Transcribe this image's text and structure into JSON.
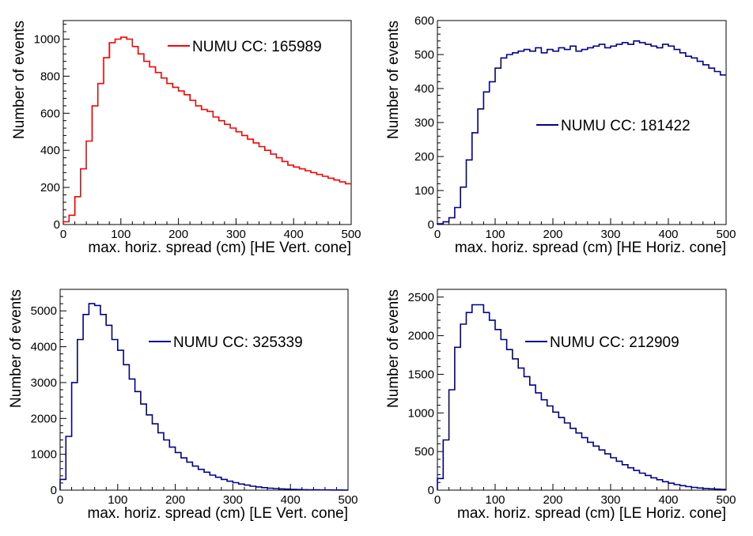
{
  "chart_data": [
    {
      "type": "histogram",
      "position": "top-left",
      "line_color": "#ff0000",
      "xlabel": "max. horiz. spread (cm) [HE Vert. cone]",
      "ylabel": "Number of events",
      "xlim": [
        0,
        500
      ],
      "ylim": [
        0,
        1100
      ],
      "xticks": [
        "0",
        "100",
        "200",
        "300",
        "400",
        "500"
      ],
      "yticks": [
        "0",
        "200",
        "400",
        "600",
        "800",
        "1000"
      ],
      "xtick_values": [
        0,
        100,
        200,
        300,
        400,
        500
      ],
      "ytick_values": [
        0,
        200,
        400,
        600,
        800,
        1000
      ],
      "legend": {
        "label": "NUMU CC: 165989",
        "placement": "top-right"
      },
      "bin_width": 10,
      "x": [
        0,
        10,
        20,
        30,
        40,
        50,
        60,
        70,
        80,
        90,
        100,
        110,
        120,
        130,
        140,
        150,
        160,
        170,
        180,
        190,
        200,
        210,
        220,
        230,
        240,
        250,
        260,
        270,
        280,
        290,
        300,
        310,
        320,
        330,
        340,
        350,
        360,
        370,
        380,
        390,
        400,
        410,
        420,
        430,
        440,
        450,
        460,
        470,
        480,
        490
      ],
      "values": [
        15,
        50,
        150,
        300,
        450,
        640,
        760,
        900,
        980,
        1000,
        1010,
        1000,
        960,
        920,
        880,
        850,
        820,
        790,
        760,
        740,
        720,
        700,
        670,
        640,
        620,
        610,
        580,
        560,
        540,
        520,
        500,
        480,
        460,
        440,
        420,
        400,
        380,
        360,
        340,
        320,
        310,
        300,
        290,
        280,
        270,
        260,
        250,
        240,
        230,
        220
      ]
    },
    {
      "type": "histogram",
      "position": "top-right",
      "line_color": "#00008b",
      "xlabel": "max. horiz. spread (cm) [HE Horiz. cone]",
      "ylabel": "Number of events",
      "xlim": [
        0,
        500
      ],
      "ylim": [
        0,
        600
      ],
      "xticks": [
        "0",
        "100",
        "200",
        "300",
        "400",
        "500"
      ],
      "yticks": [
        "0",
        "100",
        "200",
        "300",
        "400",
        "500",
        "600"
      ],
      "xtick_values": [
        0,
        100,
        200,
        300,
        400,
        500
      ],
      "ytick_values": [
        0,
        100,
        200,
        300,
        400,
        500,
        600
      ],
      "legend": {
        "label": "NUMU CC: 181422",
        "placement": "middle-right"
      },
      "bin_width": 10,
      "x": [
        0,
        10,
        20,
        30,
        40,
        50,
        60,
        70,
        80,
        90,
        100,
        110,
        120,
        130,
        140,
        150,
        160,
        170,
        180,
        190,
        200,
        210,
        220,
        230,
        240,
        250,
        260,
        270,
        280,
        290,
        300,
        310,
        320,
        330,
        340,
        350,
        360,
        370,
        380,
        390,
        400,
        410,
        420,
        430,
        440,
        450,
        460,
        470,
        480,
        490
      ],
      "values": [
        2,
        8,
        20,
        50,
        110,
        190,
        270,
        340,
        390,
        420,
        460,
        490,
        500,
        505,
        510,
        515,
        510,
        520,
        505,
        515,
        510,
        520,
        515,
        525,
        510,
        515,
        520,
        525,
        530,
        520,
        525,
        530,
        535,
        530,
        540,
        535,
        530,
        525,
        520,
        530,
        525,
        515,
        505,
        495,
        490,
        480,
        470,
        460,
        450,
        440
      ]
    },
    {
      "type": "histogram",
      "position": "bottom-left",
      "line_color": "#00008b",
      "xlabel": "max. horiz. spread (cm) [LE Vert. cone]",
      "ylabel": "Number of events",
      "xlim": [
        0,
        500
      ],
      "ylim": [
        0,
        5600
      ],
      "xticks": [
        "0",
        "100",
        "200",
        "300",
        "400",
        "500"
      ],
      "yticks": [
        "0",
        "1000",
        "2000",
        "3000",
        "4000",
        "5000"
      ],
      "xtick_values": [
        0,
        100,
        200,
        300,
        400,
        500
      ],
      "ytick_values": [
        0,
        1000,
        2000,
        3000,
        4000,
        5000
      ],
      "legend": {
        "label": "NUMU CC: 325339",
        "placement": "top-right"
      },
      "bin_width": 10,
      "x": [
        0,
        10,
        20,
        30,
        40,
        50,
        60,
        70,
        80,
        90,
        100,
        110,
        120,
        130,
        140,
        150,
        160,
        170,
        180,
        190,
        200,
        210,
        220,
        230,
        240,
        250,
        260,
        270,
        280,
        290,
        300,
        310,
        320,
        330,
        340,
        350,
        360,
        370,
        380,
        390,
        400,
        410,
        420,
        430,
        440,
        450,
        460,
        470,
        480,
        490
      ],
      "values": [
        300,
        1500,
        3000,
        4200,
        4900,
        5200,
        5150,
        4900,
        4600,
        4200,
        3900,
        3500,
        3100,
        2750,
        2400,
        2100,
        1850,
        1600,
        1400,
        1200,
        1050,
        900,
        780,
        670,
        580,
        500,
        420,
        360,
        300,
        250,
        210,
        170,
        140,
        110,
        90,
        70,
        55,
        45,
        35,
        28,
        22,
        18,
        14,
        11,
        9,
        7,
        6,
        5,
        4,
        3
      ]
    },
    {
      "type": "histogram",
      "position": "bottom-right",
      "line_color": "#00008b",
      "xlabel": "max. horiz. spread (cm) [LE Horiz. cone]",
      "ylabel": "Number of events",
      "xlim": [
        0,
        500
      ],
      "ylim": [
        0,
        2600
      ],
      "xticks": [
        "0",
        "100",
        "200",
        "300",
        "400",
        "500"
      ],
      "yticks": [
        "0",
        "500",
        "1000",
        "1500",
        "2000",
        "2500"
      ],
      "xtick_values": [
        0,
        100,
        200,
        300,
        400,
        500
      ],
      "ytick_values": [
        0,
        500,
        1000,
        1500,
        2000,
        2500
      ],
      "legend": {
        "label": "NUMU CC: 212909",
        "placement": "top-right"
      },
      "bin_width": 10,
      "x": [
        0,
        10,
        20,
        30,
        40,
        50,
        60,
        70,
        80,
        90,
        100,
        110,
        120,
        130,
        140,
        150,
        160,
        170,
        180,
        190,
        200,
        210,
        220,
        230,
        240,
        250,
        260,
        270,
        280,
        290,
        300,
        310,
        320,
        330,
        340,
        350,
        360,
        370,
        380,
        390,
        400,
        410,
        420,
        430,
        440,
        450,
        460,
        470,
        480,
        490
      ],
      "values": [
        150,
        650,
        1300,
        1850,
        2150,
        2300,
        2400,
        2400,
        2300,
        2200,
        2080,
        1950,
        1820,
        1700,
        1580,
        1470,
        1360,
        1260,
        1170,
        1090,
        1010,
        940,
        870,
        800,
        740,
        680,
        620,
        570,
        520,
        470,
        420,
        375,
        330,
        290,
        255,
        220,
        190,
        160,
        135,
        110,
        90,
        72,
        58,
        46,
        36,
        28,
        22,
        17,
        13,
        10
      ]
    }
  ]
}
